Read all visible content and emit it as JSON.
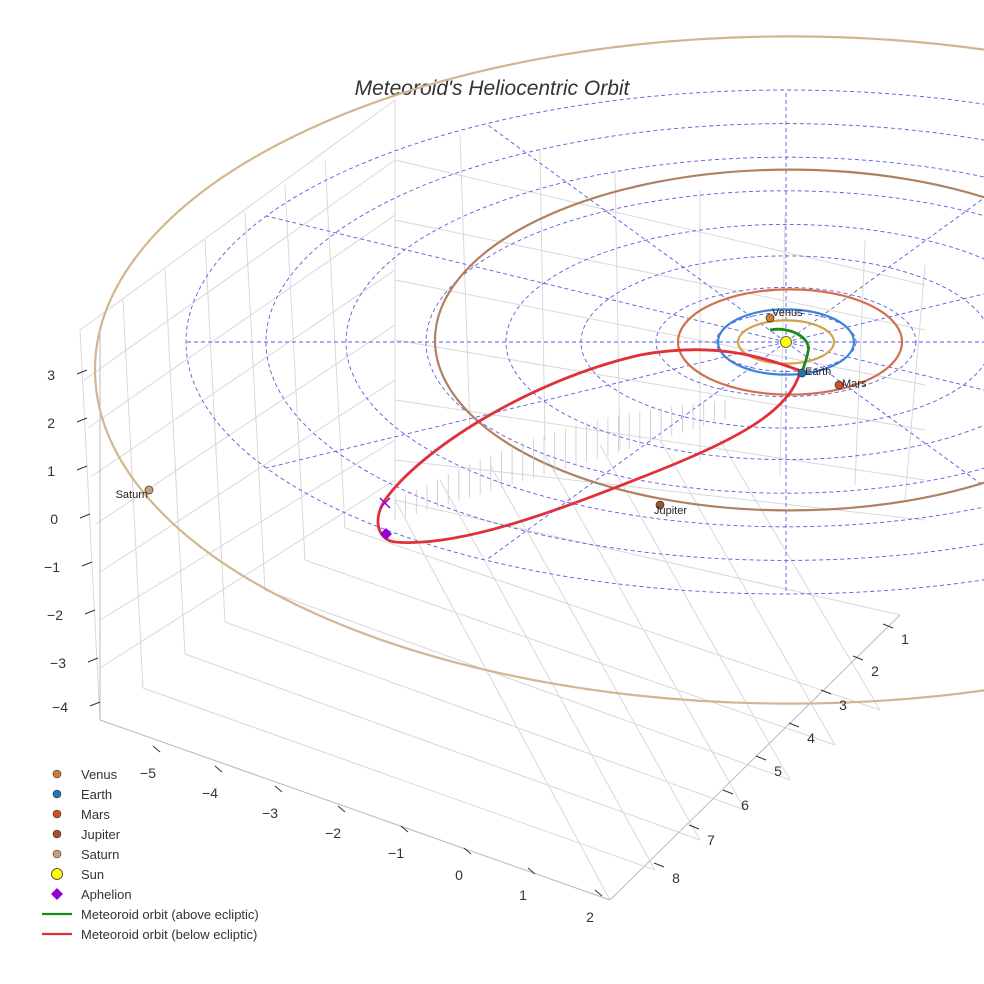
{
  "chart_data": {
    "type": "scatter",
    "title": "Meteoroid's Heliocentric Orbit",
    "axes": {
      "x": {
        "ticks": [
          "1",
          "2",
          "3",
          "4",
          "5",
          "6",
          "7",
          "8"
        ]
      },
      "y": {
        "ticks": [
          "−5",
          "−4",
          "−3",
          "−2",
          "−1",
          "0",
          "1",
          "2"
        ]
      },
      "z": {
        "ticks": [
          "3",
          "2",
          "1",
          "0",
          "−1",
          "−2",
          "−3",
          "−4"
        ]
      }
    },
    "grid": true,
    "legend_placement": "bottom-left",
    "bodies": [
      {
        "name": "Venus",
        "label": "Venus",
        "orbit_radius_au": 0.72,
        "color": "#cd7f32",
        "orbit_color": "#d2a24c"
      },
      {
        "name": "Earth",
        "label": "Earth",
        "orbit_radius_au": 1.0,
        "color": "#1f77b4",
        "orbit_color": "#3a84d6"
      },
      {
        "name": "Mars",
        "label": "Mars",
        "orbit_radius_au": 1.52,
        "color": "#d0502a",
        "orbit_color": "#d2704b"
      },
      {
        "name": "Jupiter",
        "label": "Jupiter",
        "orbit_radius_au": 5.2,
        "color": "#a0522d",
        "orbit_color": "#b08060"
      },
      {
        "name": "Saturn",
        "label": "Saturn",
        "orbit_radius_au": 9.5,
        "color": "#c8a074",
        "orbit_color": "#d2b690"
      }
    ],
    "sun": {
      "name": "Sun",
      "color": "#ffff00"
    },
    "aphelion": {
      "name": "Aphelion",
      "color": "#9400d3"
    },
    "series": [
      {
        "name": "Meteoroid orbit (above ecliptic)",
        "color": "#1a8a1a"
      },
      {
        "name": "Meteoroid orbit (below ecliptic)",
        "color": "#e0313a"
      }
    ],
    "legend": [
      {
        "label": "Venus",
        "symbol": "circle",
        "color": "#cd7f32"
      },
      {
        "label": "Earth",
        "symbol": "circle",
        "color": "#1f77b4"
      },
      {
        "label": "Mars",
        "symbol": "circle",
        "color": "#d0502a"
      },
      {
        "label": "Jupiter",
        "symbol": "circle",
        "color": "#a0522d"
      },
      {
        "label": "Saturn",
        "symbol": "circle",
        "color": "#c8a074"
      },
      {
        "label": "Sun",
        "symbol": "circle-lg",
        "color": "#ffff00"
      },
      {
        "label": "Aphelion",
        "symbol": "diamond",
        "color": "#9400d3"
      },
      {
        "label": "Meteoroid orbit (above ecliptic)",
        "symbol": "line",
        "color": "#1a8a1a"
      },
      {
        "label": "Meteoroid orbit (below ecliptic)",
        "symbol": "line",
        "color": "#e0313a"
      }
    ]
  }
}
